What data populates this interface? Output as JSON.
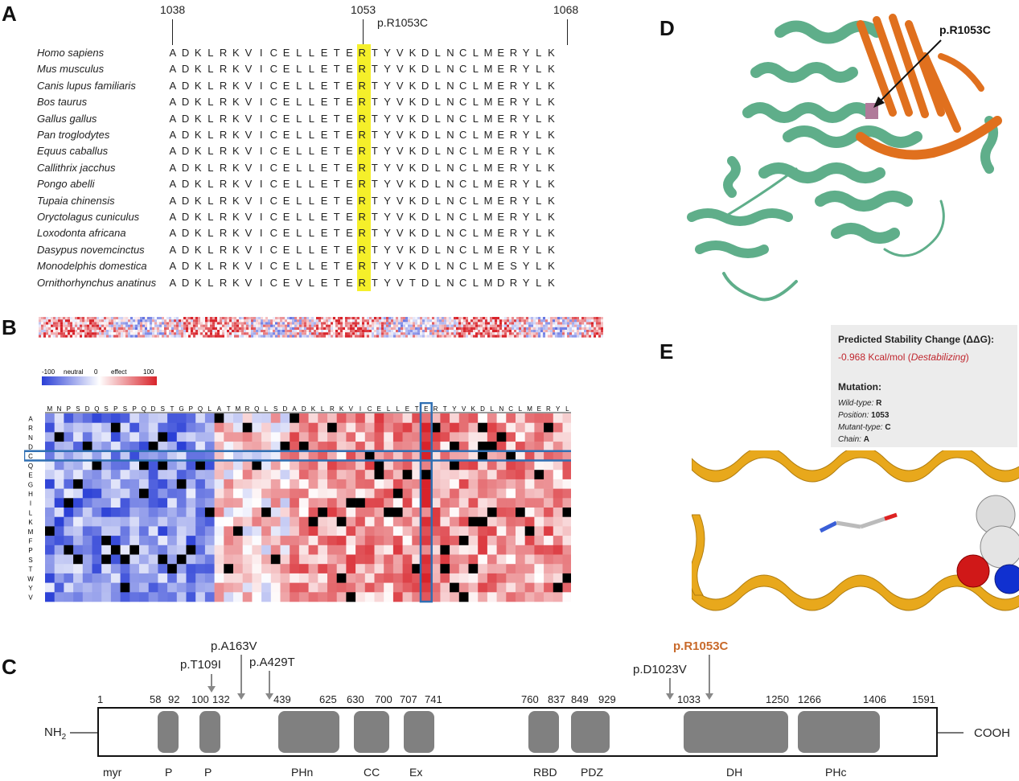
{
  "panel_a": {
    "letter": "A",
    "positions": [
      "1038",
      "1053",
      "1068"
    ],
    "variant_label": "p.R1053C",
    "species": [
      "Homo sapiens",
      "Mus musculus",
      "Canis lupus familiaris",
      "Bos taurus",
      "Gallus gallus",
      "Pan troglodytes",
      "Equus caballus",
      "Callithrix jacchus",
      "Pongo abelli",
      "Tupaia chinensis",
      "Oryctolagus cuniculus",
      "Loxodonta africana",
      "Dasypus novemcinctus",
      "Monodelphis domestica",
      "Ornithorhynchus anatinus"
    ],
    "sequences": [
      "ADKLRKVICELLETERTYVKDLNCLMERYLK",
      "ADKLRKVICELLETERTYVKDLNCLMERYLK",
      "ADKLRKVICELLETERTYVKDLNCLMERYLK",
      "ADKLRKVICELLETERTYVKDLNCLMERYLK",
      "ADKLRKVICELLETERTYVKDLNCLMERYLK",
      "ADKLRKVICELLETERTYVKDLNCLMERYLK",
      "ADKLRKVICELLETERTYVKDLNCLMERYLK",
      "ADKLRKVICELLETERTYVKDLNCLMERYLK",
      "ADKLRKVICELLETERTYVKDLNCLMERYLK",
      "ADKLRKVICELLETERTYVKDLNCLMERYLK",
      "ADKLRKVICELLETERTYVKDLNCLMERYLK",
      "ADKLRKVICELLETERTYVKDLNCLMERYLK",
      "ADKLRKVICELLETERTYVKDLNCLMERYLK",
      "ADKLRKVICELLETERTYVKDLNCLMESYLK",
      "ADKLRKVICEVLETERTYVTDLNCLMDRYLK"
    ],
    "highlight_color": "#f5ef2a"
  },
  "panel_b": {
    "letter": "B",
    "legend": {
      "min": "-100",
      "neutral_label": "neutral",
      "zero": "0",
      "effect_label": "effect",
      "max": "100"
    },
    "column_residues": "MNPSDQSPSPQDSTGPQLATMRQLSDADKLRKVICELLETERTYVKDLNCLMERYL",
    "row_residues": [
      "A",
      "R",
      "N",
      "D",
      "C",
      "Q",
      "E",
      "G",
      "H",
      "I",
      "L",
      "K",
      "M",
      "F",
      "P",
      "S",
      "T",
      "W",
      "Y",
      "V"
    ],
    "colors": {
      "neutral": "#ffffff",
      "negative": "#2a3fd6",
      "positive": "#d8232a",
      "box": "#2f6fb3"
    }
  },
  "panel_c": {
    "letter": "C",
    "n_term": "NH",
    "n_term_sub": "2",
    "c_term": "COOH",
    "positions": [
      "1",
      "58",
      "92",
      "100",
      "132",
      "439",
      "625",
      "630",
      "700",
      "707",
      "741",
      "760",
      "837",
      "849",
      "929",
      "1033",
      "1250",
      "1266",
      "1406",
      "1591"
    ],
    "domains": [
      "myr",
      "P",
      "P",
      "PHn",
      "CC",
      "Ex",
      "RBD",
      "PDZ",
      "DH",
      "PHc"
    ],
    "variants": [
      "p.T109I",
      "p.A163V",
      "p.A429T",
      "p.D1023V",
      "p.R1053C"
    ],
    "highlight_variant_color": "#c8692a"
  },
  "panel_d": {
    "letter": "D",
    "label": "p.R1053C",
    "colors": {
      "protein": "#5fae8a",
      "domain": "#e0701e",
      "site": "#b07a9a"
    }
  },
  "panel_e": {
    "letter": "E",
    "title": "Predicted Stability Change (ΔΔG):",
    "value": "-0.968 Kcal/mol",
    "value_note": "Destabilizing",
    "mutation_heading": "Mutation:",
    "fields": [
      {
        "key": "Wild-type: ",
        "val": "R"
      },
      {
        "key": "Position: ",
        "val": "1053"
      },
      {
        "key": "Mutant-type: ",
        "val": "C"
      },
      {
        "key": "Chain: ",
        "val": "A"
      }
    ],
    "colors": {
      "helix": "#e8a81c",
      "value": "#c0262e"
    }
  }
}
